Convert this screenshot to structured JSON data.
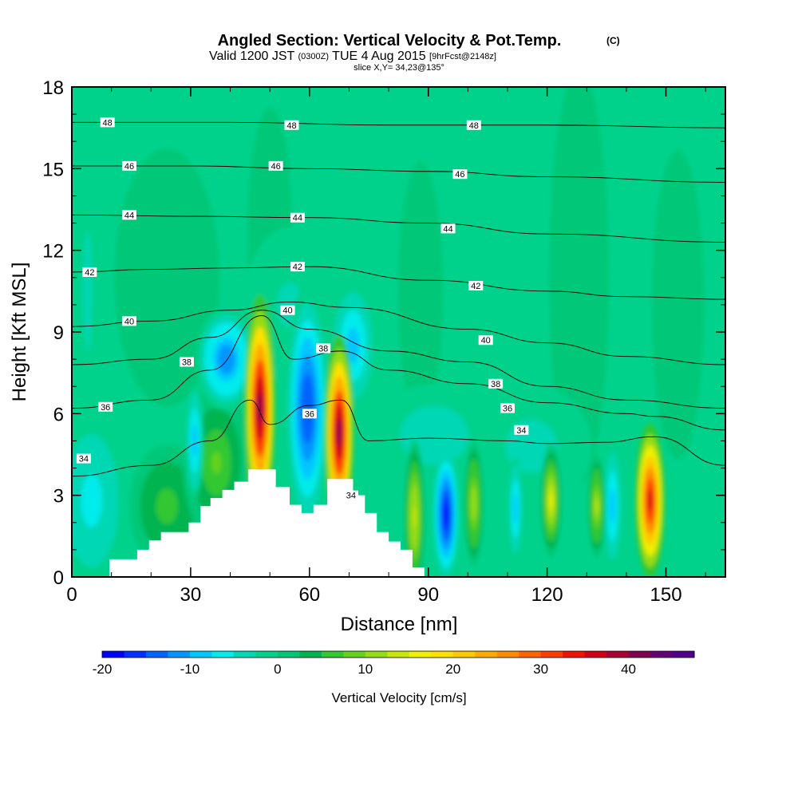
{
  "chart_data": {
    "type": "heatmap",
    "title": "Angled Section: Vertical Velocity & Pot.Temp.",
    "title_unit": "(C)",
    "subtitle_valid": "Valid 1200 JST",
    "subtitle_utc": "(0300Z)",
    "subtitle_date": "TUE 4 Aug 2015",
    "subtitle_run": "[9hrFcst@2148z]",
    "subtitle_slice": "slice X,Y= 34,23@135°",
    "xlabel": "Distance [nm]",
    "ylabel": "Height [Kft MSL]",
    "xlim": [
      0,
      165
    ],
    "ylim": [
      0,
      18
    ],
    "x_ticks": [
      "0",
      "30",
      "60",
      "90",
      "120",
      "150"
    ],
    "x_tick_values": [
      0,
      30,
      60,
      90,
      120,
      150
    ],
    "y_ticks": [
      "0",
      "3",
      "6",
      "9",
      "12",
      "15",
      "18"
    ],
    "y_tick_values": [
      0,
      3,
      6,
      9,
      12,
      15,
      18
    ],
    "terrain": [
      [
        0,
        0
      ],
      [
        9.5,
        0
      ],
      [
        9.5,
        0.65
      ],
      [
        16.5,
        0.65
      ],
      [
        16.5,
        1.0
      ],
      [
        19.5,
        1.0
      ],
      [
        19.5,
        1.35
      ],
      [
        22.5,
        1.35
      ],
      [
        22.5,
        1.65
      ],
      [
        29.5,
        1.65
      ],
      [
        29.5,
        2.0
      ],
      [
        32.5,
        2.0
      ],
      [
        32.5,
        2.6
      ],
      [
        35,
        2.6
      ],
      [
        35,
        2.9
      ],
      [
        38,
        2.9
      ],
      [
        38,
        3.2
      ],
      [
        41,
        3.2
      ],
      [
        41,
        3.5
      ],
      [
        44.5,
        3.5
      ],
      [
        44.5,
        3.95
      ],
      [
        51.5,
        3.95
      ],
      [
        51.5,
        3.3
      ],
      [
        55,
        3.3
      ],
      [
        55,
        2.65
      ],
      [
        58,
        2.65
      ],
      [
        58,
        2.35
      ],
      [
        61,
        2.35
      ],
      [
        61,
        2.65
      ],
      [
        64.5,
        2.65
      ],
      [
        64.5,
        3.6
      ],
      [
        71,
        3.6
      ],
      [
        71,
        3.0
      ],
      [
        74,
        3.0
      ],
      [
        74,
        2.35
      ],
      [
        77,
        2.35
      ],
      [
        77,
        1.65
      ],
      [
        80,
        1.65
      ],
      [
        80,
        1.3
      ],
      [
        83,
        1.3
      ],
      [
        83,
        1.0
      ],
      [
        86,
        1.0
      ],
      [
        86,
        0.35
      ],
      [
        89,
        0.35
      ],
      [
        89,
        0
      ],
      [
        165,
        0
      ]
    ],
    "velocity_cells": [
      {
        "x": 47.5,
        "z": 6.2,
        "sx": 2.1,
        "sz": 2.2,
        "v": 42
      },
      {
        "x": 67.5,
        "z": 5.3,
        "sx": 2.0,
        "sz": 1.9,
        "v": 42
      },
      {
        "x": 146.0,
        "z": 2.8,
        "sx": 2.0,
        "sz": 1.5,
        "v": 36
      },
      {
        "x": 121.0,
        "z": 2.8,
        "sx": 1.4,
        "sz": 1.1,
        "v": 16
      },
      {
        "x": 86.5,
        "z": 2.2,
        "sx": 1.4,
        "sz": 1.5,
        "v": 14
      },
      {
        "x": 101.5,
        "z": 2.7,
        "sx": 1.3,
        "sz": 1.2,
        "v": 12
      },
      {
        "x": 132.5,
        "z": 2.6,
        "sx": 1.2,
        "sz": 1.0,
        "v": 13
      },
      {
        "x": 36.5,
        "z": 4.2,
        "sx": 4.5,
        "sz": 1.5,
        "v": 8
      },
      {
        "x": 24.0,
        "z": 2.6,
        "sx": 5.0,
        "sz": 1.2,
        "v": 6
      },
      {
        "x": 94.5,
        "z": 2.3,
        "sx": 1.7,
        "sz": 1.2,
        "v": -18
      },
      {
        "x": 59.5,
        "z": 6.2,
        "sx": 3.0,
        "sz": 2.4,
        "v": -15
      },
      {
        "x": 39.0,
        "z": 8.0,
        "sx": 4.0,
        "sz": 1.0,
        "v": -12
      },
      {
        "x": 71.0,
        "z": 8.5,
        "sx": 3.0,
        "sz": 1.2,
        "v": -10
      },
      {
        "x": 31.0,
        "z": 5.0,
        "sx": 1.2,
        "sz": 1.1,
        "v": -9
      },
      {
        "x": 112.0,
        "z": 2.5,
        "sx": 1.0,
        "sz": 1.0,
        "v": -9
      },
      {
        "x": 136.5,
        "z": 2.6,
        "sx": 1.3,
        "sz": 1.2,
        "v": -9
      },
      {
        "x": 5.0,
        "z": 2.8,
        "sx": 5.0,
        "sz": 1.8,
        "v": -6
      },
      {
        "x": 91.5,
        "z": 5.2,
        "sx": 8.0,
        "sz": 1.0,
        "v": -5
      },
      {
        "x": 116.0,
        "z": 4.8,
        "sx": 8.0,
        "sz": 1.2,
        "v": -4
      },
      {
        "x": 4.0,
        "z": 10.5,
        "sx": 2.0,
        "sz": 4.0,
        "v": -3
      },
      {
        "x": 55.0,
        "z": 10.0,
        "sx": 6.0,
        "sz": 1.5,
        "v": -3
      },
      {
        "x": 50.0,
        "z": 12.5,
        "sx": 3.0,
        "sz": 2.5,
        "v": 2
      },
      {
        "x": 24.0,
        "z": 11.0,
        "sx": 7.0,
        "sz": 2.5,
        "v": 2
      },
      {
        "x": 128.0,
        "z": 11.0,
        "sx": 4.0,
        "sz": 4.0,
        "v": 2
      },
      {
        "x": 153.0,
        "z": 10.0,
        "sx": 3.5,
        "sz": 3.0,
        "v": 2
      },
      {
        "x": 88.0,
        "z": 10.5,
        "sx": 3.0,
        "sz": 2.5,
        "v": 2
      }
    ],
    "background_velocity": -1,
    "contours": [
      {
        "theta": "34",
        "pts": [
          [
            0,
            3.7
          ],
          [
            20,
            4.1
          ],
          [
            35,
            5.0
          ],
          [
            45,
            6.5
          ],
          [
            50,
            5.6
          ],
          [
            60,
            6.3
          ],
          [
            68,
            6.5
          ],
          [
            75,
            5.0
          ],
          [
            90,
            5.1
          ],
          [
            110,
            5.0
          ],
          [
            120,
            4.9
          ],
          [
            135,
            4.95
          ],
          [
            147,
            5.15
          ],
          [
            165,
            4.1
          ]
        ]
      },
      {
        "theta": "36",
        "pts": [
          [
            0,
            6.2
          ],
          [
            20,
            6.5
          ],
          [
            35,
            7.6
          ],
          [
            48,
            9.6
          ],
          [
            56,
            8.0
          ],
          [
            68,
            8.3
          ],
          [
            80,
            7.6
          ],
          [
            100,
            7.1
          ],
          [
            120,
            6.4
          ],
          [
            140,
            6.0
          ],
          [
            147,
            5.9
          ],
          [
            165,
            5.4
          ]
        ]
      },
      {
        "theta": "38",
        "pts": [
          [
            0,
            7.8
          ],
          [
            20,
            8.0
          ],
          [
            35,
            8.8
          ],
          [
            48,
            9.8
          ],
          [
            60,
            9.1
          ],
          [
            80,
            8.3
          ],
          [
            100,
            7.9
          ],
          [
            120,
            7.0
          ],
          [
            140,
            6.5
          ],
          [
            165,
            6.2
          ]
        ]
      },
      {
        "theta": "40",
        "pts": [
          [
            0,
            9.2
          ],
          [
            20,
            9.4
          ],
          [
            40,
            9.8
          ],
          [
            55,
            10.1
          ],
          [
            70,
            9.9
          ],
          [
            100,
            9.1
          ],
          [
            120,
            8.6
          ],
          [
            140,
            8.1
          ],
          [
            165,
            7.8
          ]
        ]
      },
      {
        "theta": "42",
        "pts": [
          [
            0,
            11.2
          ],
          [
            20,
            11.3
          ],
          [
            40,
            11.35
          ],
          [
            60,
            11.4
          ],
          [
            90,
            10.9
          ],
          [
            120,
            10.5
          ],
          [
            140,
            10.3
          ],
          [
            165,
            10.2
          ]
        ]
      },
      {
        "theta": "44",
        "pts": [
          [
            0,
            13.3
          ],
          [
            30,
            13.25
          ],
          [
            60,
            13.2
          ],
          [
            90,
            13.0
          ],
          [
            120,
            12.6
          ],
          [
            165,
            12.3
          ]
        ]
      },
      {
        "theta": "46",
        "pts": [
          [
            0,
            15.1
          ],
          [
            30,
            15.1
          ],
          [
            60,
            15.0
          ],
          [
            90,
            14.9
          ],
          [
            120,
            14.7
          ],
          [
            165,
            14.5
          ]
        ]
      },
      {
        "theta": "48",
        "pts": [
          [
            0,
            16.7
          ],
          [
            40,
            16.7
          ],
          [
            80,
            16.6
          ],
          [
            120,
            16.6
          ],
          [
            165,
            16.5
          ]
        ]
      }
    ],
    "contour_labels": [
      {
        "text": "48",
        "x": 9.0,
        "z": 16.7
      },
      {
        "text": "48",
        "x": 55.5,
        "z": 16.6
      },
      {
        "text": "48",
        "x": 101.5,
        "z": 16.6
      },
      {
        "text": "46",
        "x": 14.5,
        "z": 15.1
      },
      {
        "text": "46",
        "x": 51.5,
        "z": 15.1
      },
      {
        "text": "46",
        "x": 98.0,
        "z": 14.8
      },
      {
        "text": "44",
        "x": 14.5,
        "z": 13.3
      },
      {
        "text": "44",
        "x": 57.0,
        "z": 13.2
      },
      {
        "text": "44",
        "x": 95.0,
        "z": 12.8
      },
      {
        "text": "42",
        "x": 4.5,
        "z": 11.2
      },
      {
        "text": "42",
        "x": 57.0,
        "z": 11.4
      },
      {
        "text": "42",
        "x": 102.0,
        "z": 10.7
      },
      {
        "text": "40",
        "x": 14.5,
        "z": 9.4
      },
      {
        "text": "40",
        "x": 54.5,
        "z": 9.8
      },
      {
        "text": "40",
        "x": 104.5,
        "z": 8.7
      },
      {
        "text": "38",
        "x": 29.0,
        "z": 7.9
      },
      {
        "text": "38",
        "x": 63.5,
        "z": 8.4
      },
      {
        "text": "38",
        "x": 107.0,
        "z": 7.1
      },
      {
        "text": "36",
        "x": 8.5,
        "z": 6.25
      },
      {
        "text": "36",
        "x": 110.0,
        "z": 6.2
      },
      {
        "text": "36",
        "x": 60.0,
        "z": 6.0
      },
      {
        "text": "34",
        "x": 3.0,
        "z": 4.35
      },
      {
        "text": "34",
        "x": 70.5,
        "z": 3.0
      },
      {
        "text": "34",
        "x": 113.5,
        "z": 5.4
      }
    ]
  },
  "colorbar": {
    "label": "Vertical Velocity [cm/s]",
    "colors": [
      "#0000ff",
      "#0030ff",
      "#0064ff",
      "#0096ff",
      "#00c8ff",
      "#00ebeb",
      "#00d7b4",
      "#00d28c",
      "#00c878",
      "#00b450",
      "#32c832",
      "#64d21e",
      "#96dc14",
      "#c8e60a",
      "#f0f000",
      "#ffe100",
      "#ffc800",
      "#ffaa00",
      "#ff8c00",
      "#ff6400",
      "#ff3c00",
      "#f01400",
      "#d20014",
      "#aa0032",
      "#820050",
      "#640078",
      "#50008c"
    ],
    "vmin": -20,
    "step": 2.5,
    "tick_labels": [
      "-20",
      "-10",
      "0",
      "10",
      "20",
      "30",
      "40"
    ],
    "tick_values": [
      -20,
      -10,
      0,
      10,
      20,
      30,
      40
    ]
  }
}
